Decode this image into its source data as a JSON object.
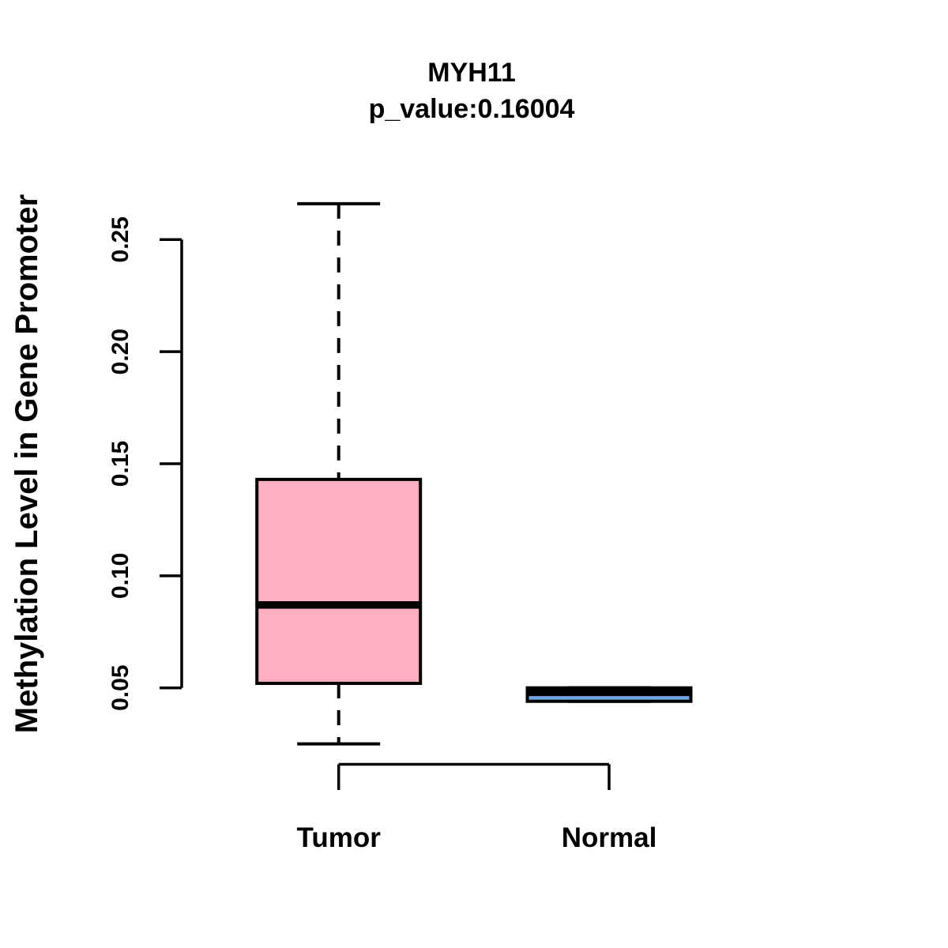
{
  "chart_data": {
    "type": "boxplot",
    "title": "MYH11",
    "subtitle": "p_value:0.16004",
    "p_value": 0.16004,
    "ylabel": "Methylation Level in Gene Promoter",
    "xlabel": "",
    "categories": [
      "Tumor",
      "Normal"
    ],
    "series": [
      {
        "name": "Tumor",
        "min": 0.025,
        "q1": 0.052,
        "median": 0.087,
        "q3": 0.143,
        "max": 0.266,
        "fill": "#FFB0C0"
      },
      {
        "name": "Normal",
        "min": 0.044,
        "q1": 0.044,
        "median": 0.048,
        "q3": 0.05,
        "max": 0.05,
        "fill": "#6CA8E6"
      }
    ],
    "yticks": [
      0.05,
      0.1,
      0.15,
      0.2,
      0.25
    ],
    "ytick_labels": [
      "0.05",
      "0.10",
      "0.15",
      "0.20",
      "0.25"
    ],
    "ylim": [
      0.025,
      0.266
    ],
    "grid": false,
    "legend": "none",
    "colors": {
      "background": "#FFFFFF",
      "line": "#000000",
      "text": "#000000",
      "tumor_fill": "#FFB0C0",
      "normal_fill": "#6CA8E6"
    }
  }
}
